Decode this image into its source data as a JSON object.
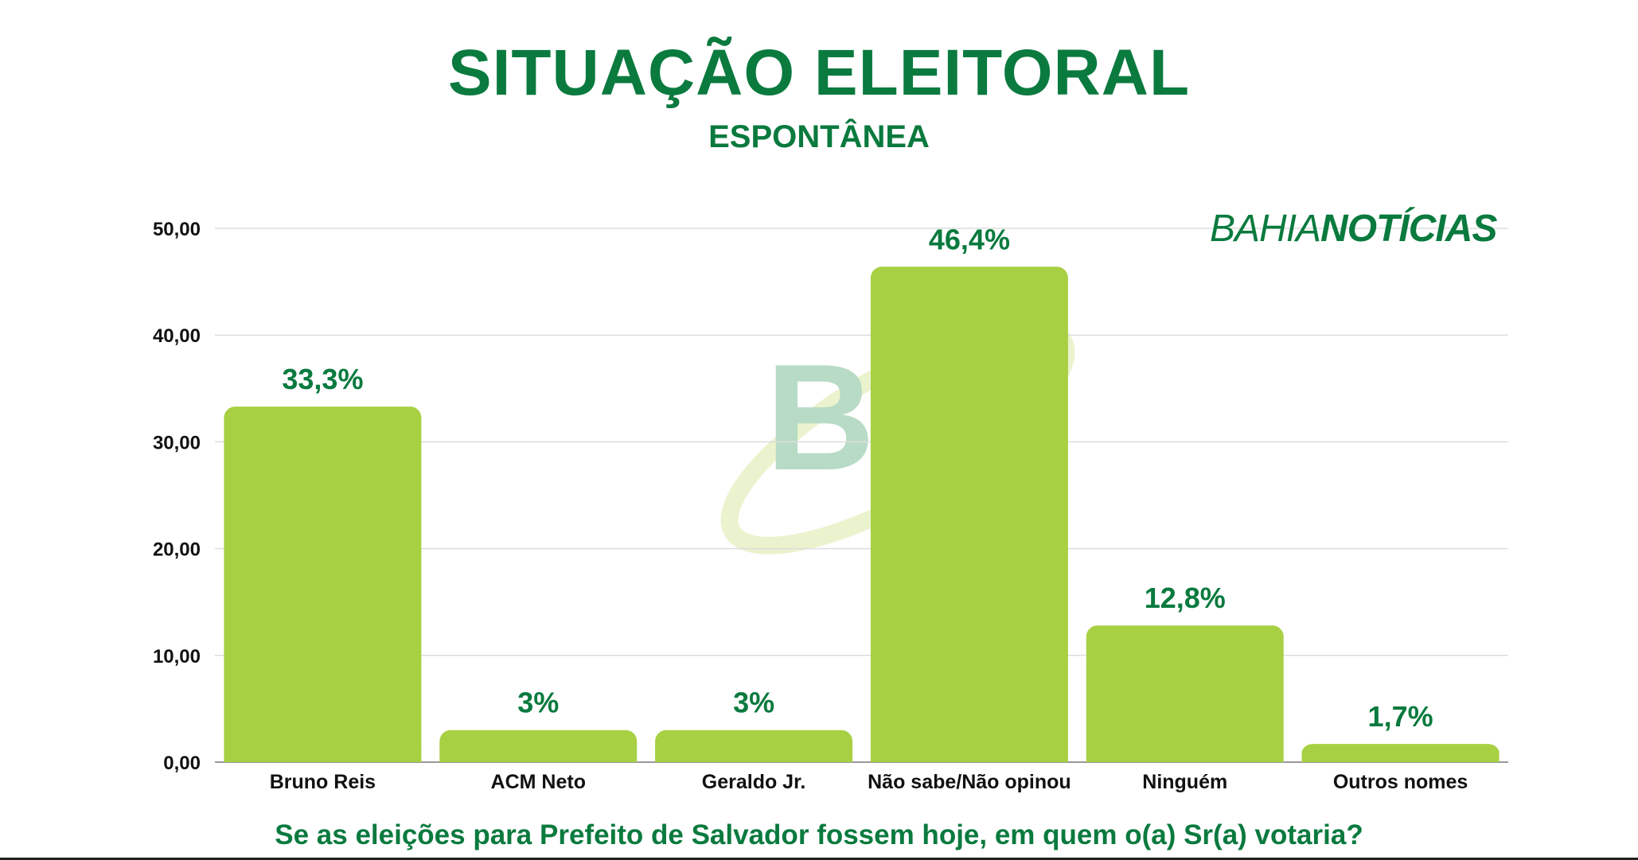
{
  "header": {
    "title": "SITUAÇÃO ELEITORAL",
    "subtitle": "ESPONTÂNEA"
  },
  "brand": {
    "part1": "BAHIA",
    "part2": "NOTÍCIAS"
  },
  "footer": {
    "question": "Se as eleições para Prefeito de Salvador fossem hoje, em quem o(a) Sr(a) votaria?"
  },
  "colors": {
    "bar": "#a8d043",
    "text_green": "#0a7a3e",
    "grid": "#dddddd"
  },
  "chart_data": {
    "type": "bar",
    "categories": [
      "Bruno Reis",
      "ACM Neto",
      "Geraldo Jr.",
      "Não sabe/Não opinou",
      "Ninguém",
      "Outros nomes"
    ],
    "values": [
      33.3,
      3,
      3,
      46.4,
      12.8,
      1.7
    ],
    "data_labels": [
      "33,3%",
      "3%",
      "3%",
      "46,4%",
      "12,8%",
      "1,7%"
    ],
    "ylim": [
      0,
      50
    ],
    "yticks": [
      0,
      10,
      20,
      30,
      40,
      50
    ],
    "ytick_labels": [
      "0,00",
      "10,00",
      "20,00",
      "30,00",
      "40,00",
      "50,00"
    ],
    "grid": true
  }
}
